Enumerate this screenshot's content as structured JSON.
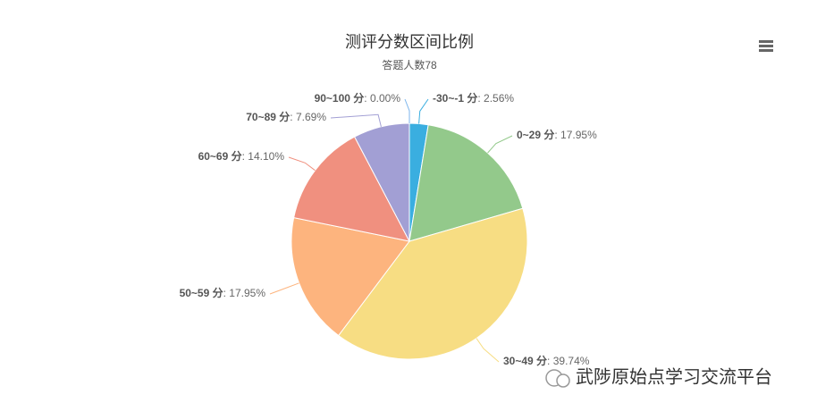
{
  "chart_data": {
    "type": "pie",
    "title": "测评分数区间比例",
    "subtitle": "答题人数78",
    "categories": [
      "-30~-1 分",
      "0~29 分",
      "30~49 分",
      "50~59 分",
      "60~69 分",
      "70~89 分",
      "90~100 分"
    ],
    "values": [
      2.56,
      17.95,
      39.74,
      17.95,
      14.1,
      7.69,
      0.0
    ],
    "value_labels": [
      "2.56%",
      "17.95%",
      "39.74%",
      "17.95%",
      "14.10%",
      "7.69%",
      "0.00%"
    ],
    "label_separator": ": ",
    "colors": [
      "#3aaee0",
      "#93c98b",
      "#f7dd83",
      "#fdb47e",
      "#f0907f",
      "#a29fd4",
      "#7cb5ec"
    ],
    "watermark": "武陟原始点学习交流平台"
  }
}
